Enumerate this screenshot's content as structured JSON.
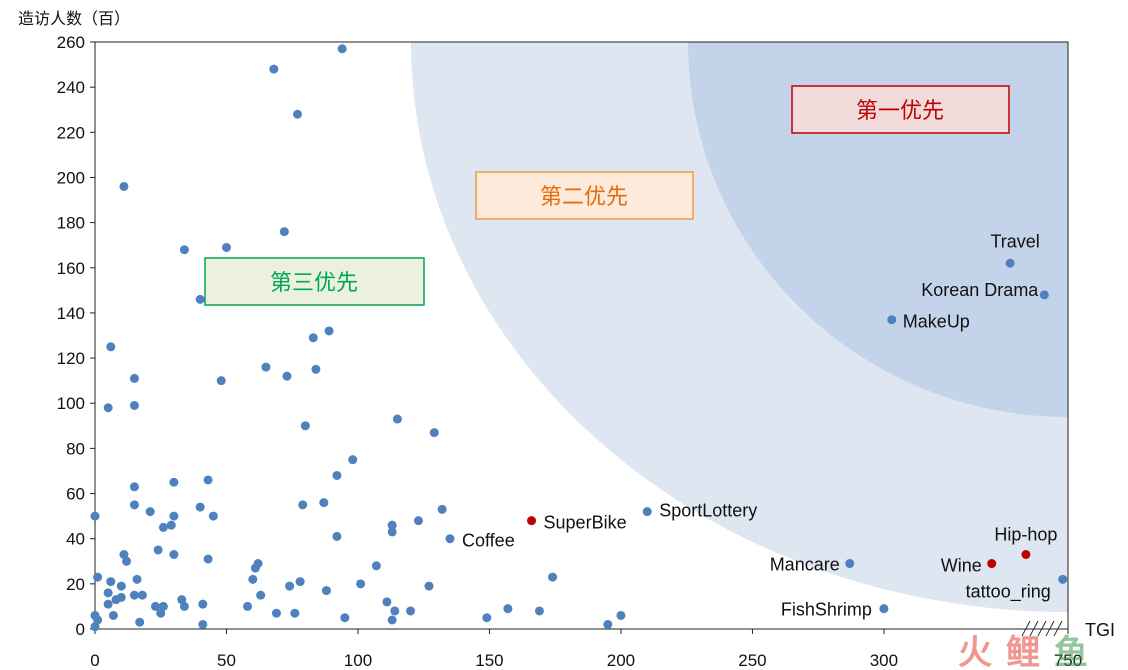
{
  "chart_data": {
    "type": "scatter",
    "title": "",
    "ylabel": "造访人数（百）",
    "xlabel": "TGI",
    "xlim": [
      0,
      370
    ],
    "ylim": [
      0,
      260
    ],
    "x_ticks": [
      "0",
      "50",
      "100",
      "150",
      "200",
      "250",
      "300",
      "750"
    ],
    "y_ticks": [
      "0",
      "20",
      "40",
      "60",
      "80",
      "100",
      "120",
      "140",
      "160",
      "180",
      "200",
      "220",
      "240",
      "260"
    ],
    "axis_break": true,
    "grid": false,
    "zones": [
      {
        "label": "第一优先",
        "fill": "#c3d3e9",
        "text_color": "#c00000",
        "border": "#c00000",
        "label_fill": "#f2dcdb"
      },
      {
        "label": "第二优先",
        "fill": "#dde6f1",
        "text_color": "#e46c0a",
        "border": "#f79646",
        "label_fill": "#fdeada"
      },
      {
        "label": "第三优先",
        "fill": "#ffffff",
        "text_color": "#00a650",
        "border": "#00a650",
        "label_fill": "#ebf1de"
      }
    ],
    "series": [
      {
        "color": "#4f81bd",
        "points": [
          [
            94,
            257
          ],
          [
            68,
            248
          ],
          [
            77,
            228
          ],
          [
            72,
            176
          ],
          [
            11,
            196
          ],
          [
            34,
            168
          ],
          [
            50,
            169
          ],
          [
            40,
            146
          ],
          [
            6,
            125
          ],
          [
            15,
            111
          ],
          [
            15,
            99
          ],
          [
            5,
            98
          ],
          [
            48,
            110
          ],
          [
            65,
            116
          ],
          [
            73,
            112
          ],
          [
            83,
            129
          ],
          [
            89,
            132
          ],
          [
            84,
            115
          ],
          [
            80,
            90
          ],
          [
            115,
            93
          ],
          [
            129,
            87
          ],
          [
            98,
            75
          ],
          [
            92,
            68
          ],
          [
            15,
            63
          ],
          [
            30,
            65
          ],
          [
            43,
            66
          ],
          [
            15,
            55
          ],
          [
            21,
            52
          ],
          [
            26,
            45
          ],
          [
            29,
            46
          ],
          [
            30,
            50
          ],
          [
            40,
            54
          ],
          [
            45,
            50
          ],
          [
            0,
            50
          ],
          [
            79,
            55
          ],
          [
            87,
            56
          ],
          [
            92,
            41
          ],
          [
            113,
            46
          ],
          [
            123,
            48
          ],
          [
            132,
            53
          ],
          [
            11,
            33
          ],
          [
            12,
            30
          ],
          [
            24,
            35
          ],
          [
            30,
            33
          ],
          [
            43,
            31
          ],
          [
            61,
            27
          ],
          [
            62,
            29
          ],
          [
            107,
            28
          ],
          [
            1,
            23
          ],
          [
            6,
            21
          ],
          [
            8,
            13
          ],
          [
            10,
            14
          ],
          [
            10,
            19
          ],
          [
            15,
            15
          ],
          [
            16,
            22
          ],
          [
            18,
            15
          ],
          [
            23,
            10
          ],
          [
            25,
            7
          ],
          [
            26,
            10
          ],
          [
            33,
            13
          ],
          [
            34,
            10
          ],
          [
            41,
            11
          ],
          [
            41,
            2
          ],
          [
            58,
            10
          ],
          [
            60,
            22
          ],
          [
            63,
            15
          ],
          [
            69,
            7
          ],
          [
            74,
            19
          ],
          [
            76,
            7
          ],
          [
            78,
            21
          ],
          [
            88,
            17
          ],
          [
            95,
            5
          ],
          [
            101,
            20
          ],
          [
            111,
            12
          ],
          [
            113,
            4
          ],
          [
            114,
            8
          ],
          [
            120,
            8
          ],
          [
            127,
            19
          ],
          [
            149,
            5
          ],
          [
            157,
            9
          ],
          [
            169,
            8
          ],
          [
            174,
            23
          ],
          [
            195,
            2
          ],
          [
            200,
            6
          ],
          [
            0,
            6
          ],
          [
            1,
            4
          ],
          [
            0,
            1
          ],
          [
            5,
            11
          ],
          [
            5,
            16
          ],
          [
            7,
            6
          ],
          [
            17,
            3
          ],
          [
            113,
            43
          ]
        ]
      },
      {
        "color": "#4f81bd",
        "labeled_points": [
          {
            "label": "Coffee",
            "x": 135,
            "y": 40
          },
          {
            "label": "SportLottery",
            "x": 210,
            "y": 52
          },
          {
            "label": "Mancare",
            "x": 287,
            "y": 29
          },
          {
            "label": "FishShrimp",
            "x": 300,
            "y": 9
          },
          {
            "label": "tattoo_ring",
            "x": 368,
            "y": 22
          },
          {
            "label": "MakeUp",
            "x": 303,
            "y": 137
          },
          {
            "label": "Korean Drama",
            "x": 361,
            "y": 148
          },
          {
            "label": "Travel",
            "x": 348,
            "y": 162
          }
        ]
      },
      {
        "color": "#c00000",
        "labeled_points": [
          {
            "label": "SuperBike",
            "x": 166,
            "y": 48
          },
          {
            "label": "Wine",
            "x": 341,
            "y": 29
          },
          {
            "label": "Hip-hop",
            "x": 354,
            "y": 33
          }
        ]
      }
    ]
  },
  "watermark": {
    "chars": [
      "火",
      "鲤",
      "鱼"
    ],
    "colors": [
      "#e8423a",
      "#e8423a",
      "#3b9a4a"
    ]
  }
}
